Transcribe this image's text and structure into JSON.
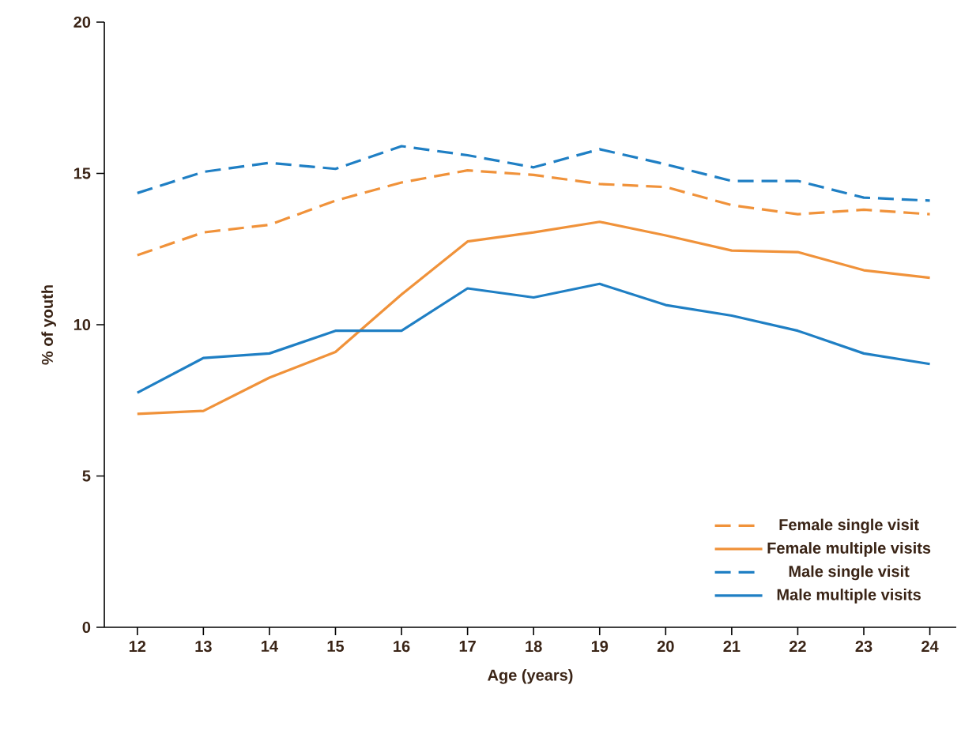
{
  "chart_data": {
    "type": "line",
    "xlabel": "Age (years)",
    "ylabel": "% of youth",
    "x": [
      12,
      13,
      14,
      15,
      16,
      17,
      18,
      19,
      20,
      21,
      22,
      23,
      24
    ],
    "xlim": [
      11.5,
      24.4
    ],
    "ylim": [
      0,
      20
    ],
    "xticks": [
      12,
      13,
      14,
      15,
      16,
      17,
      18,
      19,
      20,
      21,
      22,
      23,
      24
    ],
    "yticks": [
      0,
      5,
      10,
      15,
      20
    ],
    "grid": false,
    "legend": "bottom right",
    "series": [
      {
        "name": "Female single visit",
        "color": "#f0923a",
        "line_style": "dashed",
        "values": [
          12.3,
          13.05,
          13.3,
          14.1,
          14.7,
          15.1,
          14.95,
          14.65,
          14.55,
          13.95,
          13.65,
          13.8,
          13.65
        ]
      },
      {
        "name": "Female multiple visits",
        "color": "#f0923a",
        "line_style": "solid",
        "values": [
          7.05,
          7.15,
          8.25,
          9.1,
          11.0,
          12.75,
          13.05,
          13.4,
          12.95,
          12.45,
          12.4,
          11.8,
          11.55
        ]
      },
      {
        "name": "Male single visit",
        "color": "#1f7fc4",
        "line_style": "dashed",
        "values": [
          14.35,
          15.05,
          15.35,
          15.15,
          15.9,
          15.6,
          15.2,
          15.8,
          15.3,
          14.75,
          14.75,
          14.2,
          14.1
        ]
      },
      {
        "name": "Male multiple visits",
        "color": "#1f7fc4",
        "line_style": "solid",
        "values": [
          7.75,
          8.9,
          9.05,
          9.8,
          9.8,
          11.2,
          10.9,
          11.35,
          10.65,
          10.3,
          9.8,
          9.05,
          8.7
        ]
      }
    ]
  }
}
